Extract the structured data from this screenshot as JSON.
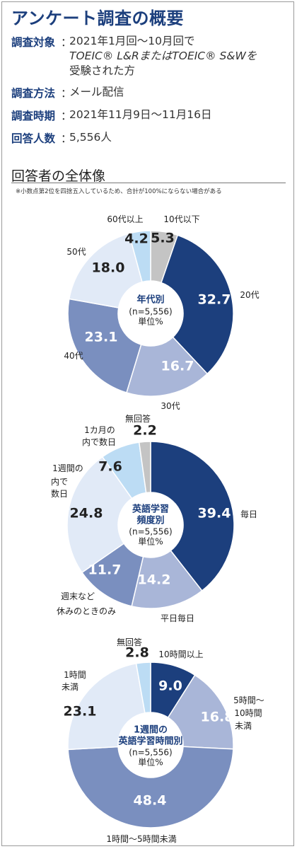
{
  "title": "アンケート調査の概要",
  "info": [
    {
      "key": "調査対象",
      "lines": [
        "2021年1月回〜10月回で",
        "TOEIC® L&RまたはTOEIC® S&Wを",
        "受験された方"
      ]
    },
    {
      "key": "調査方法",
      "lines": [
        "メール配信"
      ]
    },
    {
      "key": "調査時期",
      "lines": [
        "2021年11月9日〜11月16日"
      ]
    },
    {
      "key": "回答人数",
      "lines": [
        "5,556人"
      ]
    }
  ],
  "separator": "：",
  "section_title": "回答者の全体像",
  "note": "※小数点第2位を四捨五入しているため、合計が100%にならない場合がある",
  "colors": {
    "navy": "#1c3f7d",
    "medium": "#7a8fbf",
    "light_grayblue": "#a9b6d8",
    "very_light": "#e1eaf7",
    "light_blue": "#bcdcf4",
    "gray": "#c4c4c4"
  },
  "chart_data": [
    {
      "type": "pie",
      "center_label": [
        "年代別",
        "(n=5,556)",
        "単位%"
      ],
      "slices": [
        {
          "name": "10代以下",
          "value": 5.3,
          "label": "5.3"
        },
        {
          "name": "20代",
          "value": 32.7,
          "label": "32.7"
        },
        {
          "name": "30代",
          "value": 16.7,
          "label": "16.7"
        },
        {
          "name": "40代",
          "value": 23.1,
          "label": "23.1"
        },
        {
          "name": "50代",
          "value": 18.0,
          "label": "18.0"
        },
        {
          "name": "60代以上",
          "value": 4.2,
          "label": "4.2"
        }
      ]
    },
    {
      "type": "pie",
      "center_label": [
        "英語学習",
        "頻度別",
        "(n=5,556)",
        "単位%"
      ],
      "slices": [
        {
          "name": "毎日",
          "value": 39.4,
          "label": "39.4"
        },
        {
          "name": "平日毎日",
          "value": 14.2,
          "label": "14.2"
        },
        {
          "name": "週末など休みのときのみ",
          "value": 11.7,
          "label": "11.7"
        },
        {
          "name": "1週間の内で数日",
          "value": 24.8,
          "label": "24.8"
        },
        {
          "name": "1カ月の内で数日",
          "value": 7.6,
          "label": "7.6"
        },
        {
          "name": "無回答",
          "value": 2.2,
          "label": "2.2"
        }
      ]
    },
    {
      "type": "pie",
      "center_label": [
        "1週間の",
        "英語学習時間別",
        "(n=5,556)",
        "単位%"
      ],
      "slices": [
        {
          "name": "10時間以上",
          "value": 9.0,
          "label": "9.0"
        },
        {
          "name": "5時間〜10時間未満",
          "value": 16.8,
          "label": "16.8"
        },
        {
          "name": "1時間〜5時間未満",
          "value": 48.4,
          "label": "48.4"
        },
        {
          "name": "1時間未満",
          "value": 23.1,
          "label": "23.1"
        },
        {
          "name": "無回答",
          "value": 2.8,
          "label": "2.8"
        }
      ]
    }
  ]
}
